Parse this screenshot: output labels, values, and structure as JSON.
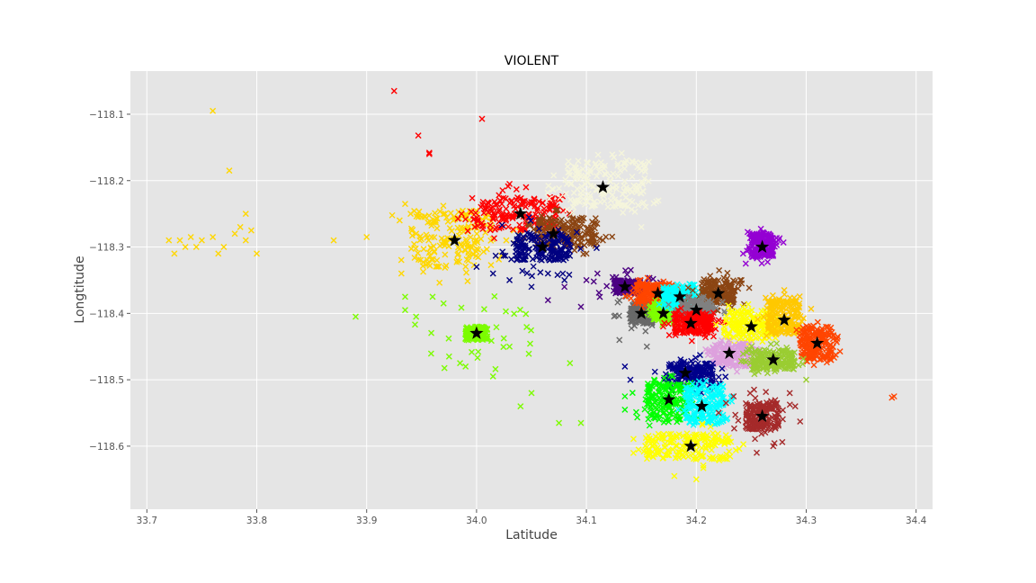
{
  "chart_data": {
    "type": "scatter",
    "title": "VIOLENT",
    "xlabel": "Latitude",
    "ylabel": "Longtitude",
    "xlim": [
      33.685,
      34.415
    ],
    "ylim": [
      -118.695,
      -118.035
    ],
    "xticks": [
      {
        "value": 33.7,
        "label": "33.7"
      },
      {
        "value": 33.8,
        "label": "33.8"
      },
      {
        "value": 33.9,
        "label": "33.9"
      },
      {
        "value": 34.0,
        "label": "34.0"
      },
      {
        "value": 34.1,
        "label": "34.1"
      },
      {
        "value": 34.2,
        "label": "34.2"
      },
      {
        "value": 34.3,
        "label": "34.3"
      },
      {
        "value": 34.4,
        "label": "34.4"
      }
    ],
    "yticks": [
      {
        "value": -118.1,
        "label": "−118.1"
      },
      {
        "value": -118.2,
        "label": "−118.2"
      },
      {
        "value": -118.3,
        "label": "−118.3"
      },
      {
        "value": -118.4,
        "label": "−118.4"
      },
      {
        "value": -118.5,
        "label": "−118.5"
      },
      {
        "value": -118.6,
        "label": "−118.6"
      }
    ],
    "grid": true,
    "background": "#e5e5e5",
    "clusters": [
      {
        "color": "#ffd700",
        "centroid": [
          33.98,
          -118.29
        ],
        "core": {
          "x0": 33.94,
          "x1": 34.015,
          "y0": -118.33,
          "y1": -118.245
        },
        "scatter": 0.03,
        "outliers": [
          [
            33.72,
            -118.29
          ],
          [
            33.725,
            -118.31
          ],
          [
            33.73,
            -118.29
          ],
          [
            33.735,
            -118.3
          ],
          [
            33.74,
            -118.285
          ],
          [
            33.745,
            -118.3
          ],
          [
            33.75,
            -118.29
          ],
          [
            33.76,
            -118.285
          ],
          [
            33.765,
            -118.31
          ],
          [
            33.77,
            -118.3
          ],
          [
            33.78,
            -118.28
          ],
          [
            33.785,
            -118.27
          ],
          [
            33.79,
            -118.29
          ],
          [
            33.795,
            -118.275
          ],
          [
            33.8,
            -118.31
          ],
          [
            33.76,
            -118.095
          ],
          [
            33.775,
            -118.185
          ],
          [
            33.79,
            -118.25
          ],
          [
            33.87,
            -118.29
          ],
          [
            33.9,
            -118.285
          ],
          [
            33.93,
            -118.26
          ],
          [
            33.935,
            -118.235
          ],
          [
            33.94,
            -118.25
          ],
          [
            33.945,
            -118.28
          ]
        ]
      },
      {
        "color": "#ff0000",
        "centroid": [
          34.04,
          -118.25
        ],
        "core": {
          "x0": 34.0,
          "x1": 34.075,
          "y0": -118.275,
          "y1": -118.225
        },
        "scatter": 0.02,
        "outliers": [
          [
            33.925,
            -118.065
          ],
          [
            33.947,
            -118.132
          ],
          [
            33.957,
            -118.158
          ],
          [
            33.957,
            -118.16
          ],
          [
            34.005,
            -118.107
          ],
          [
            34.03,
            -118.205
          ],
          [
            34.045,
            -118.21
          ]
        ]
      },
      {
        "color": "#8b4513",
        "centroid": [
          34.07,
          -118.28
        ],
        "core": {
          "x0": 34.055,
          "x1": 34.11,
          "y0": -118.3,
          "y1": -118.255
        },
        "scatter": 0.015,
        "outliers": [
          [
            34.115,
            -118.29
          ],
          [
            34.1,
            -118.31
          ]
        ]
      },
      {
        "color": "#000080",
        "centroid": [
          34.06,
          -118.3
        ],
        "core": {
          "x0": 34.035,
          "x1": 34.085,
          "y0": -118.32,
          "y1": -118.28
        },
        "scatter": 0.03,
        "outliers": [
          [
            34.0,
            -118.33
          ],
          [
            34.015,
            -118.34
          ],
          [
            34.03,
            -118.35
          ],
          [
            34.05,
            -118.36
          ],
          [
            34.065,
            -118.34
          ],
          [
            34.08,
            -118.35
          ]
        ]
      },
      {
        "color": "#f5f5dc",
        "centroid": [
          34.115,
          -118.21
        ],
        "core": {
          "x0": 34.08,
          "x1": 34.155,
          "y0": -118.24,
          "y1": -118.17
        },
        "scatter": 0.02,
        "outliers": [
          [
            34.15,
            -118.27
          ],
          [
            34.125,
            -118.165
          ]
        ]
      },
      {
        "color": "#7cfc00",
        "centroid": [
          34.0,
          -118.43
        ],
        "core": {
          "x0": 33.99,
          "x1": 34.01,
          "y0": -118.44,
          "y1": -118.42
        },
        "scatter": 0.05,
        "outliers": [
          [
            33.89,
            -118.405
          ],
          [
            33.935,
            -118.375
          ],
          [
            33.935,
            -118.395
          ],
          [
            33.945,
            -118.405
          ],
          [
            33.96,
            -118.375
          ],
          [
            33.97,
            -118.385
          ],
          [
            33.975,
            -118.465
          ],
          [
            33.985,
            -118.475
          ],
          [
            33.99,
            -118.48
          ],
          [
            34.015,
            -118.495
          ],
          [
            34.03,
            -118.45
          ],
          [
            34.04,
            -118.54
          ],
          [
            34.05,
            -118.52
          ],
          [
            34.075,
            -118.565
          ],
          [
            34.085,
            -118.475
          ],
          [
            34.095,
            -118.565
          ]
        ]
      },
      {
        "color": "#4b0082",
        "centroid": [
          34.135,
          -118.36
        ],
        "core": {
          "x0": 34.125,
          "x1": 34.15,
          "y0": -118.37,
          "y1": -118.35
        },
        "scatter": 0.02,
        "outliers": [
          [
            34.065,
            -118.38
          ],
          [
            34.08,
            -118.36
          ],
          [
            34.095,
            -118.39
          ],
          [
            34.1,
            -118.35
          ],
          [
            34.11,
            -118.34
          ]
        ]
      },
      {
        "color": "#696969",
        "centroid": [
          34.15,
          -118.4
        ],
        "core": {
          "x0": 34.14,
          "x1": 34.16,
          "y0": -118.415,
          "y1": -118.385
        },
        "scatter": 0.02,
        "outliers": [
          [
            34.13,
            -118.44
          ],
          [
            34.155,
            -118.45
          ]
        ]
      },
      {
        "color": "#ff4500",
        "centroid": [
          34.165,
          -118.37
        ],
        "core": {
          "x0": 34.145,
          "x1": 34.18,
          "y0": -118.385,
          "y1": -118.355
        },
        "scatter": 0.01,
        "outliers": []
      },
      {
        "color": "#7fff00",
        "centroid": [
          34.17,
          -118.4
        ],
        "core": {
          "x0": 34.16,
          "x1": 34.18,
          "y0": -118.41,
          "y1": -118.385
        },
        "scatter": 0.008,
        "outliers": []
      },
      {
        "color": "#00ffff",
        "centroid": [
          34.185,
          -118.375
        ],
        "core": {
          "x0": 34.17,
          "x1": 34.2,
          "y0": -118.39,
          "y1": -118.36
        },
        "scatter": 0.008,
        "outliers": []
      },
      {
        "color": "#8b4513",
        "centroid": [
          34.22,
          -118.37
        ],
        "core": {
          "x0": 34.205,
          "x1": 34.235,
          "y0": -118.385,
          "y1": -118.35
        },
        "scatter": 0.015,
        "outliers": [
          [
            34.24,
            -118.35
          ]
        ]
      },
      {
        "color": "#808080",
        "centroid": [
          34.2,
          -118.395
        ],
        "core": {
          "x0": 34.185,
          "x1": 34.215,
          "y0": -118.41,
          "y1": -118.38
        },
        "scatter": 0.012,
        "outliers": []
      },
      {
        "color": "#ff0000",
        "centroid": [
          34.195,
          -118.415
        ],
        "core": {
          "x0": 34.18,
          "x1": 34.215,
          "y0": -118.43,
          "y1": -118.4
        },
        "scatter": 0.012,
        "outliers": []
      },
      {
        "color": "#9400d3",
        "centroid": [
          34.26,
          -118.3
        ],
        "core": {
          "x0": 34.25,
          "x1": 34.27,
          "y0": -118.315,
          "y1": -118.28
        },
        "scatter": 0.01,
        "outliers": [
          [
            34.245,
            -118.325
          ],
          [
            34.275,
            -118.29
          ]
        ]
      },
      {
        "color": "#ffff00",
        "centroid": [
          34.25,
          -118.42
        ],
        "core": {
          "x0": 34.225,
          "x1": 34.27,
          "y0": -118.44,
          "y1": -118.395
        },
        "scatter": 0.012,
        "outliers": []
      },
      {
        "color": "#ffc800",
        "centroid": [
          34.28,
          -118.41
        ],
        "core": {
          "x0": 34.265,
          "x1": 34.295,
          "y0": -118.43,
          "y1": -118.38
        },
        "scatter": 0.012,
        "outliers": [
          [
            34.28,
            -118.365
          ]
        ]
      },
      {
        "color": "#ff4500",
        "centroid": [
          34.31,
          -118.445
        ],
        "core": {
          "x0": 34.295,
          "x1": 34.325,
          "y0": -118.47,
          "y1": -118.42
        },
        "scatter": 0.01,
        "outliers": [
          [
            34.38,
            -118.525
          ],
          [
            34.378,
            -118.527
          ]
        ]
      },
      {
        "color": "#dda0dd",
        "centroid": [
          34.23,
          -118.46
        ],
        "core": {
          "x0": 34.215,
          "x1": 34.25,
          "y0": -118.48,
          "y1": -118.445
        },
        "scatter": 0.01,
        "outliers": []
      },
      {
        "color": "#9acd32",
        "centroid": [
          34.27,
          -118.47
        ],
        "core": {
          "x0": 34.25,
          "x1": 34.29,
          "y0": -118.485,
          "y1": -118.455
        },
        "scatter": 0.012,
        "outliers": [
          [
            34.3,
            -118.5
          ]
        ]
      },
      {
        "color": "#00008b",
        "centroid": [
          34.19,
          -118.49
        ],
        "core": {
          "x0": 34.175,
          "x1": 34.215,
          "y0": -118.51,
          "y1": -118.475
        },
        "scatter": 0.015,
        "outliers": [
          [
            34.135,
            -118.48
          ],
          [
            34.14,
            -118.5
          ]
        ]
      },
      {
        "color": "#00ff00",
        "centroid": [
          34.175,
          -118.53
        ],
        "core": {
          "x0": 34.155,
          "x1": 34.195,
          "y0": -118.56,
          "y1": -118.505
        },
        "scatter": 0.015,
        "outliers": [
          [
            34.135,
            -118.525
          ],
          [
            34.135,
            -118.545
          ]
        ]
      },
      {
        "color": "#00ffff",
        "centroid": [
          34.205,
          -118.54
        ],
        "core": {
          "x0": 34.19,
          "x1": 34.225,
          "y0": -118.565,
          "y1": -118.51
        },
        "scatter": 0.01,
        "outliers": []
      },
      {
        "color": "#a52a2a",
        "centroid": [
          34.26,
          -118.555
        ],
        "core": {
          "x0": 34.245,
          "x1": 34.275,
          "y0": -118.575,
          "y1": -118.535
        },
        "scatter": 0.025,
        "outliers": [
          [
            34.29,
            -118.54
          ],
          [
            34.285,
            -118.52
          ],
          [
            34.27,
            -118.6
          ],
          [
            34.255,
            -118.61
          ]
        ]
      },
      {
        "color": "#ffff00",
        "centroid": [
          34.195,
          -118.6
        ],
        "core": {
          "x0": 34.155,
          "x1": 34.23,
          "y0": -118.62,
          "y1": -118.58
        },
        "scatter": 0.015,
        "outliers": [
          [
            34.18,
            -118.645
          ],
          [
            34.2,
            -118.65
          ]
        ]
      }
    ]
  }
}
